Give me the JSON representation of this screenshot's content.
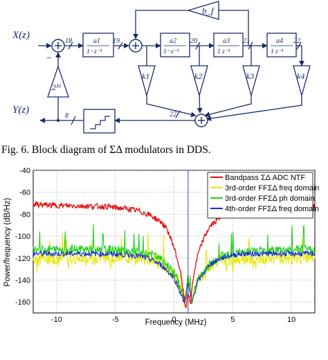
{
  "diagram": {
    "input_label": "X(z)",
    "output_label": "Y(z)",
    "int1_num": "a1",
    "int1_den": "1−z⁻¹",
    "int2_num": "a2",
    "int2_den": "1−z⁻¹",
    "int3_num": "a3",
    "int3_den": "1 z⁻¹",
    "int4_num": "a4",
    "int4_den": "1 z⁻¹",
    "feedback_gain": "b_f",
    "input_gain": "2¹⁶",
    "k1": "k1",
    "k2": "k2",
    "k3": "k3",
    "k4": "k4",
    "bus_labels": [
      "18",
      "19",
      "20",
      "21",
      "22",
      "22",
      "8"
    ],
    "sum_minus": "−"
  },
  "caption": "Fig. 6.   Block diagram of ΣΔ modulators in DDS.",
  "chart_data": {
    "type": "line",
    "xlabel": "Frequency (MHz)",
    "ylabel": "Power/frequency (dB/Hz)",
    "xlim": [
      -12,
      12
    ],
    "ylim": [
      -170,
      -40
    ],
    "xticks": [
      -10,
      -5,
      0,
      5,
      10
    ],
    "yticks": [
      -40,
      -60,
      -80,
      -100,
      -120,
      -140,
      -160
    ],
    "grid": true,
    "legend_position": "top-right",
    "marker_x": 1.2,
    "series": [
      {
        "name": "Bandpass ΣΔ ADC NTF",
        "color": "#e51010",
        "x": [
          -12,
          -10,
          -8,
          -6,
          -4,
          -3,
          -2,
          -1,
          -0.5,
          0,
          0.5,
          0.8,
          1.0,
          1.2,
          1.4,
          1.6,
          2,
          2.5,
          3,
          4,
          5,
          6,
          8,
          10,
          12
        ],
        "y": [
          -71,
          -72,
          -72.5,
          -73,
          -75,
          -77,
          -81,
          -88,
          -96,
          -110,
          -130,
          -152,
          -166,
          -150,
          -164,
          -140,
          -118,
          -103,
          -92,
          -82,
          -77,
          -75,
          -73.5,
          -72.5,
          -72
        ]
      },
      {
        "name": "3rd-order FFΣΔ freq domain",
        "color": "#e8e800",
        "x": [
          -12,
          -10,
          -8,
          -6,
          -4,
          -2,
          -1,
          0,
          0.5,
          0.9,
          1.2,
          1.5,
          2,
          3,
          4,
          6,
          8,
          10,
          12
        ],
        "y": [
          -120,
          -120,
          -120,
          -119,
          -119,
          -121,
          -125,
          -135,
          -145,
          -158,
          -138,
          -158,
          -140,
          -128,
          -123,
          -121,
          -120,
          -120,
          -120
        ]
      },
      {
        "name": "3rd-order FFΣΔ ph domain",
        "color": "#20d020",
        "x": [
          -12,
          -10,
          -8,
          -6,
          -4,
          -2,
          -1,
          0,
          0.5,
          0.9,
          1.2,
          1.5,
          2,
          3,
          4,
          6,
          8,
          10,
          12
        ],
        "y": [
          -112,
          -112,
          -112,
          -112,
          -113,
          -116,
          -122,
          -133,
          -145,
          -160,
          -138,
          -160,
          -140,
          -126,
          -118,
          -114,
          -113,
          -112,
          -112
        ]
      },
      {
        "name": "4th-order FFΣΔ freq domain",
        "color": "#1030d0",
        "x": [
          -12,
          -10,
          -8,
          -6,
          -4,
          -3,
          -2,
          -1,
          0,
          0.5,
          0.9,
          1.2,
          1.5,
          2,
          3,
          4,
          5,
          6,
          8,
          10,
          12
        ],
        "y": [
          -116,
          -116,
          -116,
          -116,
          -117,
          -118,
          -121,
          -127,
          -138,
          -150,
          -162,
          -142,
          -161,
          -142,
          -126,
          -120,
          -117,
          -116,
          -116,
          -116,
          -116
        ]
      }
    ]
  }
}
